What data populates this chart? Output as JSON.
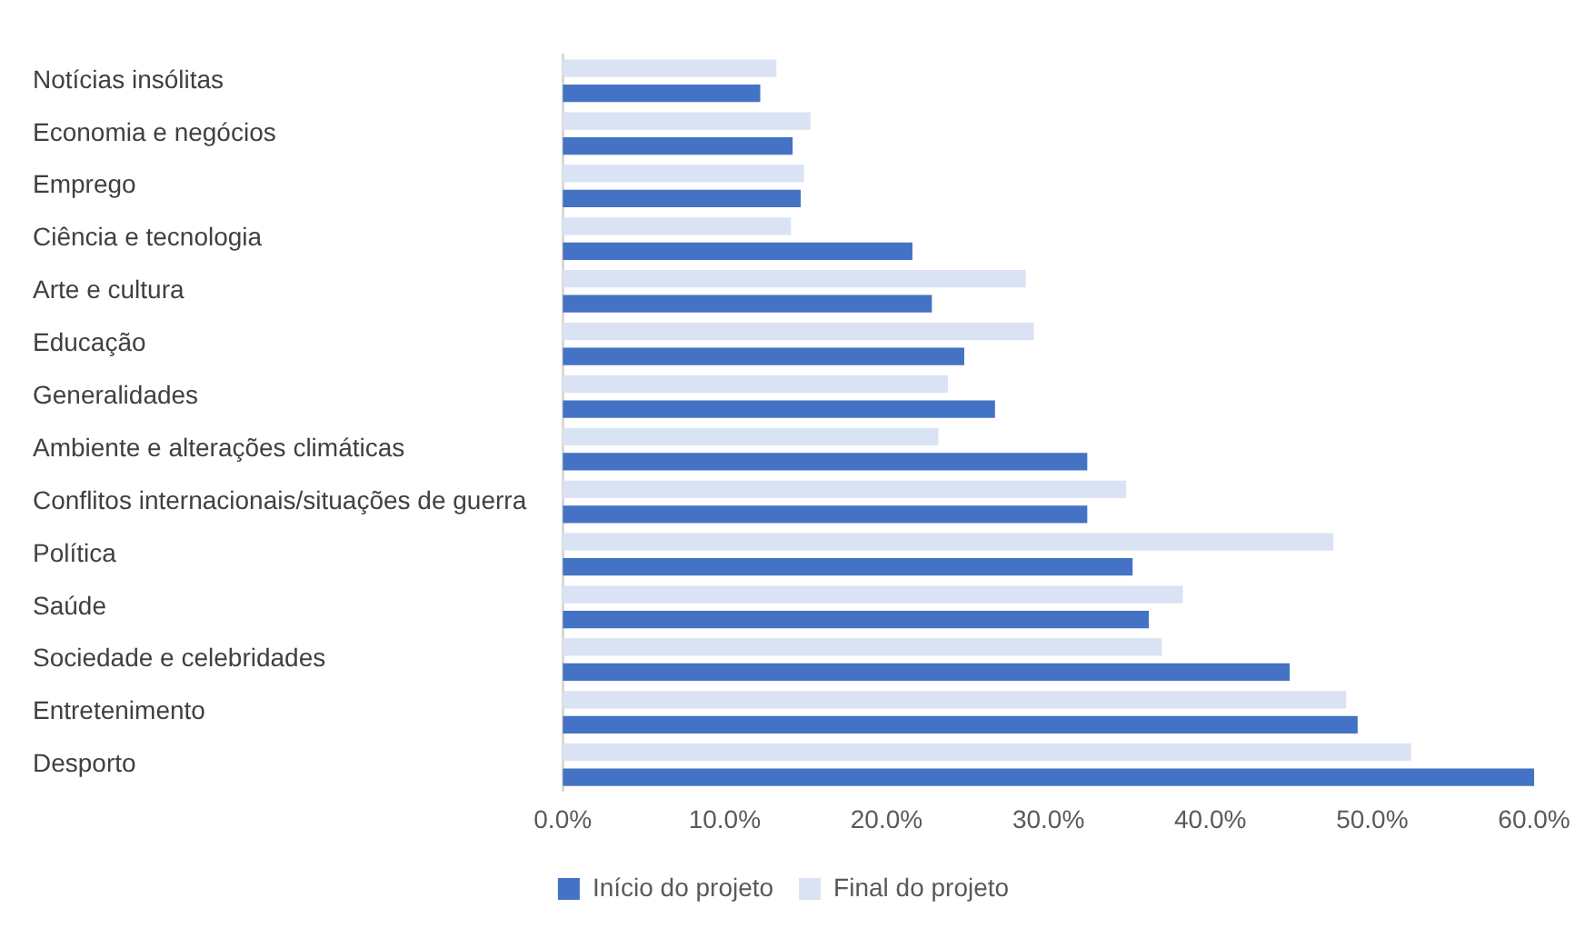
{
  "chart_data": {
    "type": "bar",
    "orientation": "horizontal",
    "categories": [
      "Notícias insólitas",
      "Economia e negócios",
      "Emprego",
      "Ciência e tecnologia",
      "Arte e cultura",
      "Educação",
      "Generalidades",
      "Ambiente e alterações climáticas",
      "Conflitos internacionais/situações de guerra",
      "Política",
      "Saúde",
      "Sociedade e celebridades",
      "Entretenimento",
      "Desporto"
    ],
    "series": [
      {
        "name": "Início do projeto",
        "color": "#4472c4",
        "values": [
          12.2,
          14.2,
          14.7,
          21.6,
          22.8,
          24.8,
          26.7,
          32.4,
          32.4,
          35.2,
          36.2,
          44.9,
          49.1,
          60.0
        ]
      },
      {
        "name": "Final do projeto",
        "color": "#dae3f3",
        "values": [
          13.2,
          15.3,
          14.9,
          14.1,
          28.6,
          29.1,
          23.8,
          23.2,
          34.8,
          47.6,
          38.3,
          37.0,
          48.4,
          52.4
        ]
      }
    ],
    "xlim": [
      0,
      60
    ],
    "xticks": [
      {
        "value": 0,
        "label": "0.0%"
      },
      {
        "value": 10,
        "label": "10.0%"
      },
      {
        "value": 20,
        "label": "20.0%"
      },
      {
        "value": 30,
        "label": "30.0%"
      },
      {
        "value": 40,
        "label": "40.0%"
      },
      {
        "value": 50,
        "label": "50.0%"
      },
      {
        "value": 60,
        "label": "60.0%"
      }
    ],
    "grid": false,
    "legend": "bottom"
  }
}
